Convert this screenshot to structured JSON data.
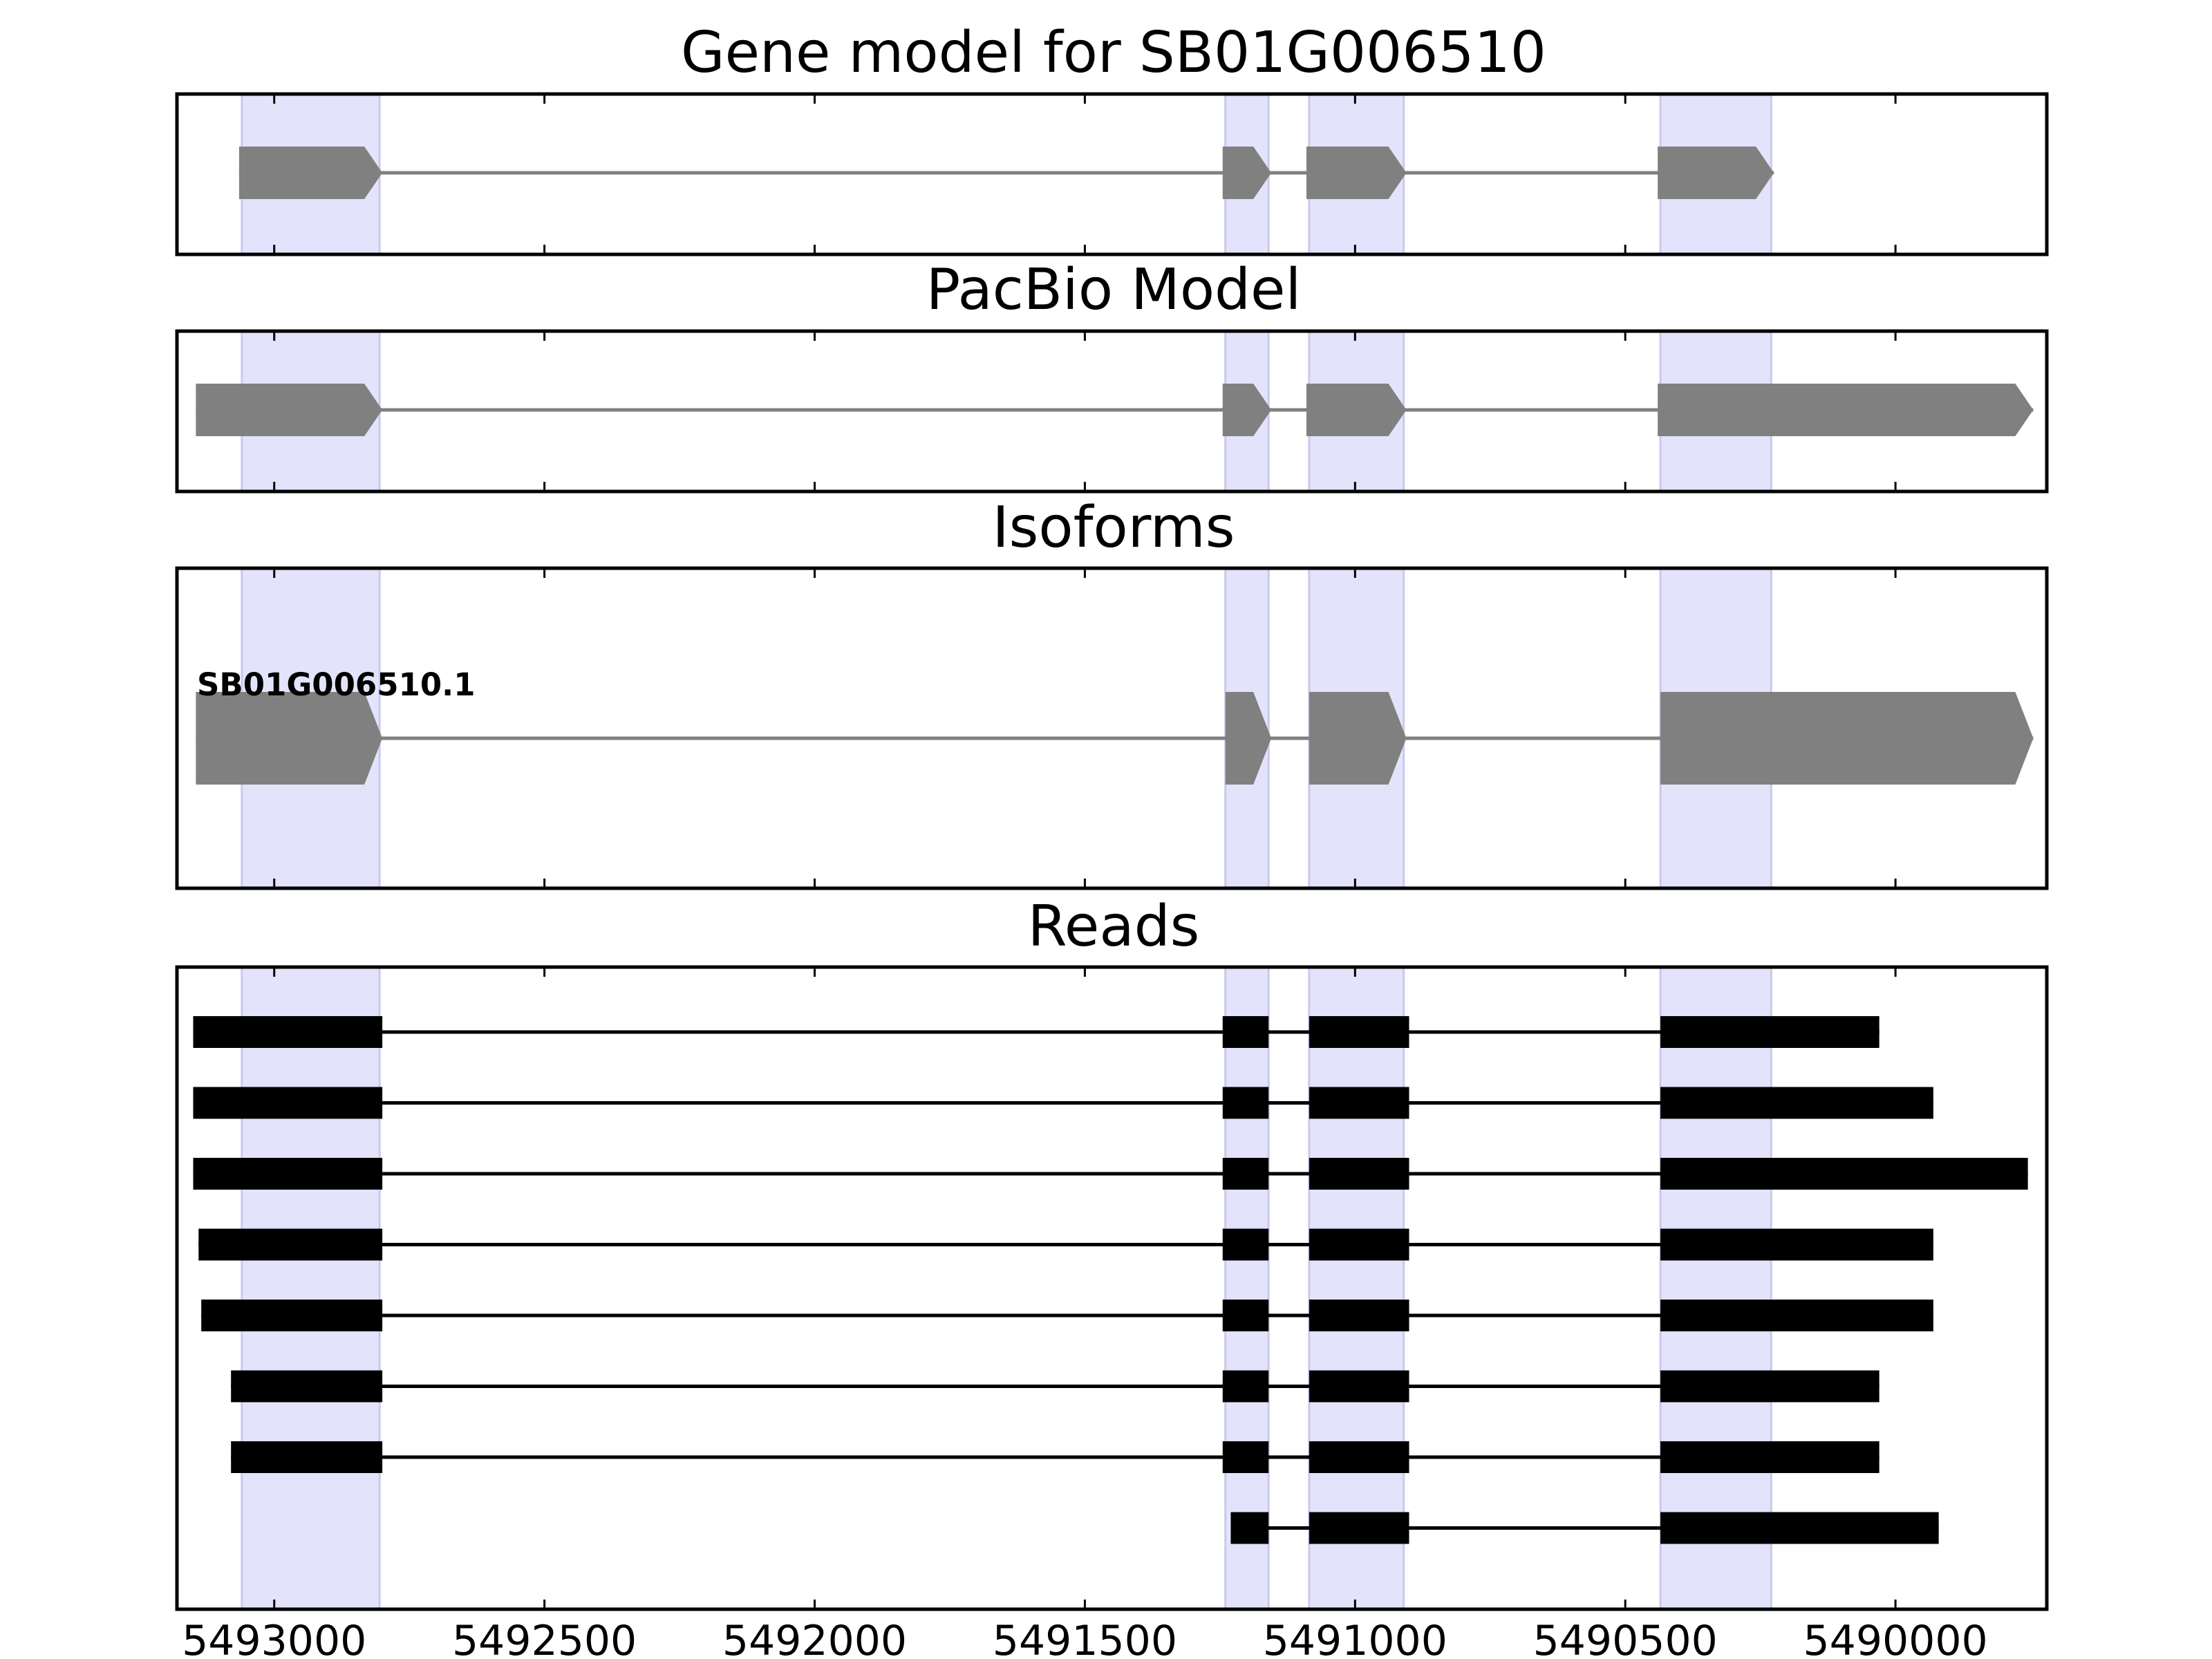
{
  "figure": {
    "background": "#ffffff",
    "exon_color": "#808080",
    "read_color": "#000000",
    "intron_color": "#808080",
    "highlight_color": "#e3e3fb"
  },
  "axis": {
    "x_min": 5493180,
    "x_max": 5489720,
    "reversed": true,
    "ticks": [
      {
        "value": 5493000,
        "label": "5493000"
      },
      {
        "value": 5492500,
        "label": "5492500"
      },
      {
        "value": 5492000,
        "label": "5492000"
      },
      {
        "value": 5491500,
        "label": "5491500"
      },
      {
        "value": 5491000,
        "label": "5491000"
      },
      {
        "value": 5490500,
        "label": "5490500"
      },
      {
        "value": 5490000,
        "label": "5490000"
      }
    ]
  },
  "highlight_regions": [
    [
      5493060,
      5492805
    ],
    [
      5491240,
      5491160
    ],
    [
      5491085,
      5490910
    ],
    [
      5490435,
      5490230
    ]
  ],
  "panels": {
    "gene_model": {
      "title": "Gene model for SB01G006510",
      "exons": [
        [
          5493065,
          5492800
        ],
        [
          5491245,
          5491155
        ],
        [
          5491090,
          5490905
        ],
        [
          5490440,
          5490225
        ]
      ]
    },
    "pacbio_model": {
      "title": "PacBio Model",
      "exons": [
        [
          5493145,
          5492800
        ],
        [
          5491245,
          5491155
        ],
        [
          5491090,
          5490905
        ],
        [
          5490440,
          5489745
        ]
      ]
    },
    "isoforms": {
      "title": "Isoforms",
      "items": [
        {
          "label": "SB01G006510.1",
          "exons": [
            [
              5493145,
              5492800
            ],
            [
              5491240,
              5491155
            ],
            [
              5491085,
              5490905
            ],
            [
              5490435,
              5489745
            ]
          ]
        }
      ]
    },
    "reads": {
      "title": "Reads",
      "items": [
        {
          "exons": [
            [
              5493150,
              5492800
            ],
            [
              5491245,
              5491160
            ],
            [
              5491085,
              5490900
            ],
            [
              5490435,
              5490030
            ]
          ]
        },
        {
          "exons": [
            [
              5493150,
              5492800
            ],
            [
              5491245,
              5491160
            ],
            [
              5491085,
              5490900
            ],
            [
              5490435,
              5489930
            ]
          ]
        },
        {
          "exons": [
            [
              5493150,
              5492800
            ],
            [
              5491245,
              5491160
            ],
            [
              5491085,
              5490900
            ],
            [
              5490435,
              5489755
            ]
          ]
        },
        {
          "exons": [
            [
              5493140,
              5492800
            ],
            [
              5491245,
              5491160
            ],
            [
              5491085,
              5490900
            ],
            [
              5490435,
              5489930
            ]
          ]
        },
        {
          "exons": [
            [
              5493135,
              5492800
            ],
            [
              5491245,
              5491160
            ],
            [
              5491085,
              5490900
            ],
            [
              5490435,
              5489930
            ]
          ]
        },
        {
          "exons": [
            [
              5493080,
              5492800
            ],
            [
              5491245,
              5491160
            ],
            [
              5491085,
              5490900
            ],
            [
              5490435,
              5490030
            ]
          ]
        },
        {
          "exons": [
            [
              5493080,
              5492800
            ],
            [
              5491245,
              5491160
            ],
            [
              5491085,
              5490900
            ],
            [
              5490435,
              5490030
            ]
          ]
        },
        {
          "exons": [
            [
              5491230,
              5491160
            ],
            [
              5491085,
              5490900
            ],
            [
              5490435,
              5489920
            ]
          ]
        }
      ]
    }
  }
}
